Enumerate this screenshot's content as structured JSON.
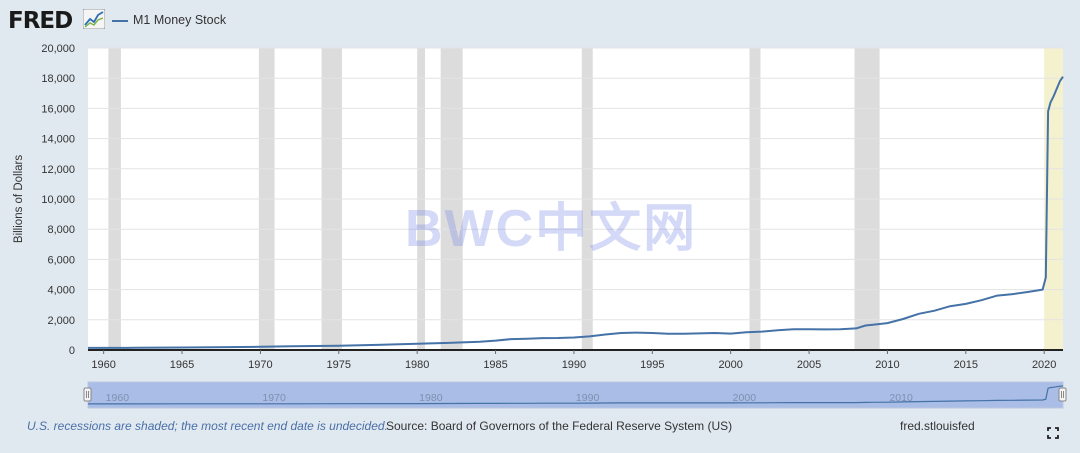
{
  "header": {
    "logo_text": "FRED",
    "legend_label": "M1 Money Stock",
    "series_color": "#4572a7"
  },
  "watermark": "BWC中文网",
  "footer": {
    "recession_note": "U.S. recessions are shaded; the most recent end date is undecided.",
    "source": "Source: Board of Governors of the Federal Reserve System (US)",
    "link": "fred.stlouisfed"
  },
  "chart_data": {
    "type": "line",
    "ylabel": "Billions of Dollars",
    "ylim": [
      0,
      20000
    ],
    "yticks": [
      0,
      2000,
      4000,
      6000,
      8000,
      10000,
      12000,
      14000,
      16000,
      18000,
      20000
    ],
    "xlim": [
      1959.0,
      2021.2
    ],
    "xticks": [
      1960,
      1965,
      1970,
      1975,
      1980,
      1985,
      1990,
      1995,
      2000,
      2005,
      2010,
      2015,
      2020
    ],
    "navigator_ticks": [
      1960,
      1970,
      1980,
      1990,
      2000,
      2010
    ],
    "grid": true,
    "recessions": [
      [
        1960.3,
        1961.1
      ],
      [
        1969.9,
        1970.9
      ],
      [
        1973.9,
        1975.2
      ],
      [
        1980.0,
        1980.5
      ],
      [
        1981.5,
        1982.9
      ],
      [
        1990.5,
        1991.2
      ],
      [
        2001.2,
        2001.9
      ],
      [
        2007.9,
        2009.5
      ]
    ],
    "recession_color": "#dcdcdc",
    "undecided_recession": [
      2020.0,
      2021.2
    ],
    "undecided_color": "#f4f1cf",
    "series": [
      {
        "name": "M1 Money Stock",
        "color": "#4572a7",
        "x": [
          1959.0,
          1960.0,
          1962.0,
          1965.0,
          1968.0,
          1970.0,
          1972.0,
          1975.0,
          1978.0,
          1980.0,
          1982.0,
          1984.0,
          1985.0,
          1986.0,
          1987.0,
          1988.0,
          1989.0,
          1990.0,
          1991.0,
          1992.0,
          1993.0,
          1994.0,
          1995.0,
          1996.0,
          1997.0,
          1998.0,
          1999.0,
          2000.0,
          2001.0,
          2002.0,
          2003.0,
          2004.0,
          2005.0,
          2006.0,
          2007.0,
          2008.0,
          2008.6,
          2009.0,
          2010.0,
          2011.0,
          2012.0,
          2013.0,
          2014.0,
          2015.0,
          2016.0,
          2017.0,
          2018.0,
          2019.0,
          2019.9,
          2020.1,
          2020.25,
          2020.4,
          2020.6,
          2021.0,
          2021.2
        ],
        "y": [
          140,
          141,
          148,
          167,
          190,
          214,
          245,
          287,
          356,
          408,
          473,
          552,
          620,
          725,
          750,
          787,
          794,
          825,
          898,
          1024,
          1129,
          1150,
          1127,
          1081,
          1073,
          1097,
          1124,
          1088,
          1179,
          1220,
          1306,
          1376,
          1375,
          1367,
          1375,
          1430,
          1620,
          1660,
          1780,
          2050,
          2400,
          2600,
          2900,
          3050,
          3300,
          3600,
          3700,
          3850,
          4000,
          4800,
          15800,
          16400,
          16800,
          17800,
          18100
        ]
      }
    ]
  }
}
